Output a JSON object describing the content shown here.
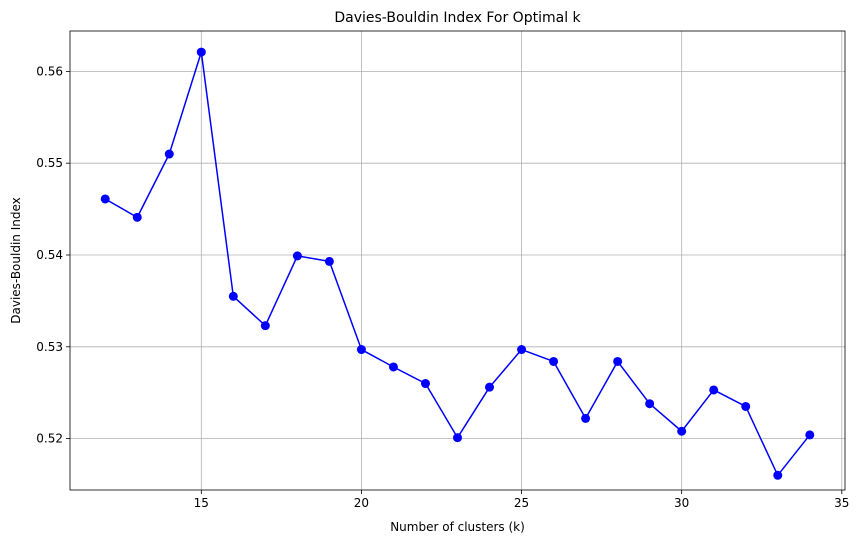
{
  "chart_data": {
    "type": "line",
    "title": "Davies-Bouldin Index For Optimal k",
    "xlabel": "Number of clusters (k)",
    "ylabel": "Davies-Bouldin Index",
    "xlim": [
      10.9,
      35.1
    ],
    "ylim": [
      0.5144,
      0.5644
    ],
    "xticks": [
      15,
      20,
      25,
      30,
      35
    ],
    "xtick_labels": [
      "15",
      "20",
      "25",
      "30",
      "35"
    ],
    "yticks": [
      0.52,
      0.53,
      0.54,
      0.55,
      0.56
    ],
    "ytick_labels": [
      "0.52",
      "0.53",
      "0.54",
      "0.55",
      "0.56"
    ],
    "grid": true,
    "legend": "none",
    "series": [
      {
        "color": "#0000ff",
        "marker": "circle",
        "x": [
          12,
          13,
          14,
          15,
          16,
          17,
          18,
          19,
          20,
          21,
          22,
          23,
          24,
          25,
          26,
          27,
          28,
          29,
          30,
          31,
          32,
          33,
          34
        ],
        "y": [
          0.5461,
          0.5441,
          0.551,
          0.5621,
          0.5355,
          0.5323,
          0.5399,
          0.5393,
          0.5297,
          0.5278,
          0.526,
          0.5201,
          0.5256,
          0.5297,
          0.5284,
          0.5222,
          0.5284,
          0.5238,
          0.5208,
          0.5253,
          0.5235,
          0.516,
          0.5204
        ]
      }
    ]
  },
  "colors": {
    "line": "#0000ff",
    "grid": "#b0b0b0",
    "axes": "#000000"
  }
}
